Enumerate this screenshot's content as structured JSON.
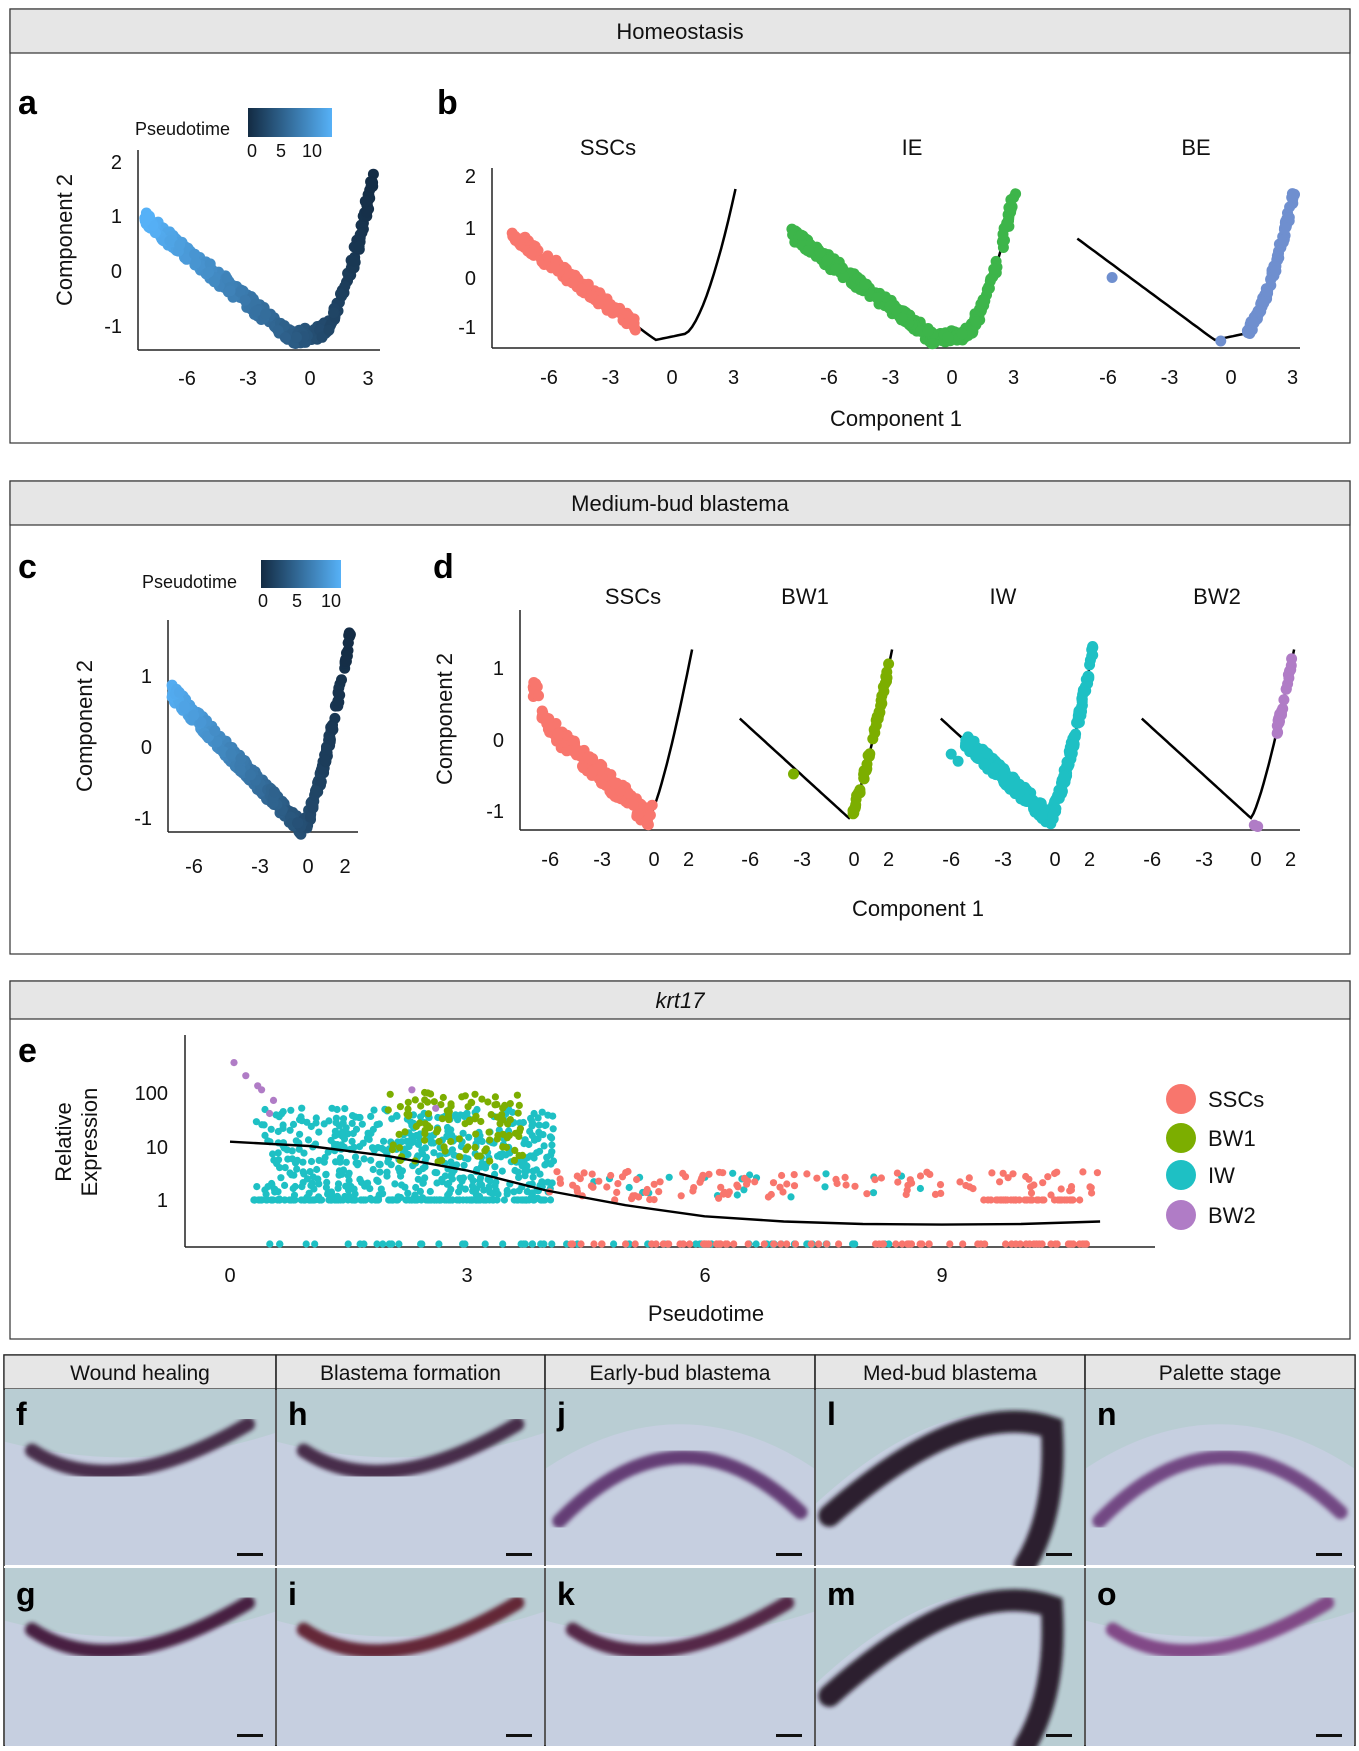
{
  "strips": {
    "homeostasis": "Homeostasis",
    "medium_bud": "Medium-bud blastema",
    "gene": "krt17"
  },
  "panel_letters": {
    "a": "a",
    "b": "b",
    "c": "c",
    "d": "d",
    "e": "e"
  },
  "colorbar": {
    "title": "Pseudotime",
    "ticks": [
      "0",
      "5",
      "10"
    ],
    "color_dark": "#132B43",
    "color_light": "#56B1F7"
  },
  "colors": {
    "SSCs": "#F8766D",
    "IE": "#3DB54A",
    "BE": "#6F8FCF",
    "BW1": "#7CAE00",
    "IW": "#1EC0C4",
    "BW2": "#B07CC6"
  },
  "chart_data": [
    {
      "panel": "a",
      "type": "scatter",
      "title": "",
      "xlabel": "",
      "ylabel": "Component 2",
      "xlim": [
        -8.2,
        3.6
      ],
      "ylim": [
        -1.45,
        2.1
      ],
      "x_ticks": [
        "-6",
        "-3",
        "0",
        "3"
      ],
      "y_ticks": [
        "-1",
        "0",
        "1",
        "2"
      ],
      "color_by": "Pseudotime",
      "trajectory": [
        [
          -8,
          1.08
        ],
        [
          -6,
          0.55
        ],
        [
          -4,
          0
        ],
        [
          -2,
          -0.55
        ],
        [
          -0.8,
          -1.1
        ],
        [
          0.3,
          -0.95
        ],
        [
          1.2,
          -0.45
        ],
        [
          2.2,
          0.3
        ],
        [
          3.1,
          1.9
        ]
      ]
    },
    {
      "panel": "b",
      "type": "scatter",
      "xlabel": "Component 1",
      "x_ticks": [
        "-6",
        "-3",
        "0",
        "3"
      ],
      "y_ticks": [
        "-1",
        "0",
        "1",
        "2"
      ],
      "facets": [
        {
          "title": "SSCs",
          "color": "SSCs",
          "x_range": [
            -7.8,
            -1.8
          ]
        },
        {
          "title": "IE",
          "color": "IE",
          "x_range": [
            -7.8,
            3.1
          ]
        },
        {
          "title": "BE",
          "color": "BE",
          "x_range": [
            -5.5,
            3.1
          ]
        }
      ]
    },
    {
      "panel": "c",
      "type": "scatter",
      "ylabel": "Component 2",
      "xlim": [
        -7.2,
        2.7
      ],
      "ylim": [
        -1.25,
        1.8
      ],
      "x_ticks": [
        "-6",
        "-3",
        "0",
        "2"
      ],
      "y_ticks": [
        "-1",
        "0",
        "1"
      ],
      "color_by": "Pseudotime"
    },
    {
      "panel": "d",
      "type": "scatter",
      "xlabel": "Component 1",
      "ylabel": "Component 2",
      "x_ticks": [
        "-6",
        "-3",
        "0",
        "2"
      ],
      "y_ticks": [
        "-1",
        "0",
        "1"
      ],
      "facets": [
        {
          "title": "SSCs",
          "color": "SSCs"
        },
        {
          "title": "BW1",
          "color": "BW1"
        },
        {
          "title": "IW",
          "color": "IW"
        },
        {
          "title": "BW2",
          "color": "BW2"
        }
      ]
    },
    {
      "panel": "e",
      "type": "scatter",
      "title": "krt17",
      "xlabel": "Pseudotime",
      "ylabel": "Relative\nExpression",
      "ylabel_lines": [
        "Relative",
        "Expression"
      ],
      "xlim": [
        -0.5,
        11.5
      ],
      "y_scale": "log",
      "x_ticks": [
        "0",
        "3",
        "6",
        "9"
      ],
      "y_ticks": [
        "100",
        "10",
        "1"
      ],
      "series": [
        {
          "name": "SSCs"
        },
        {
          "name": "BW1"
        },
        {
          "name": "IW"
        },
        {
          "name": "BW2"
        }
      ],
      "legend": [
        "SSCs",
        "BW1",
        "IW",
        "BW2"
      ],
      "legend_position": "right",
      "fit_line": [
        [
          0,
          12
        ],
        [
          1,
          10
        ],
        [
          2,
          6.5
        ],
        [
          3,
          3.5
        ],
        [
          4,
          1.5
        ],
        [
          5,
          0.8
        ],
        [
          6,
          0.5
        ],
        [
          7,
          0.4
        ],
        [
          8,
          0.36
        ],
        [
          9,
          0.35
        ],
        [
          10,
          0.36
        ],
        [
          11,
          0.4
        ]
      ]
    }
  ],
  "micrographs": {
    "columns": [
      "Wound healing",
      "Blastema formation",
      "Early-bud blastema",
      "Med-bud blastema",
      "Palette stage"
    ],
    "top_letters": [
      "f",
      "h",
      "j",
      "l",
      "n"
    ],
    "bottom_letters": [
      "g",
      "i",
      "k",
      "m",
      "o"
    ]
  }
}
